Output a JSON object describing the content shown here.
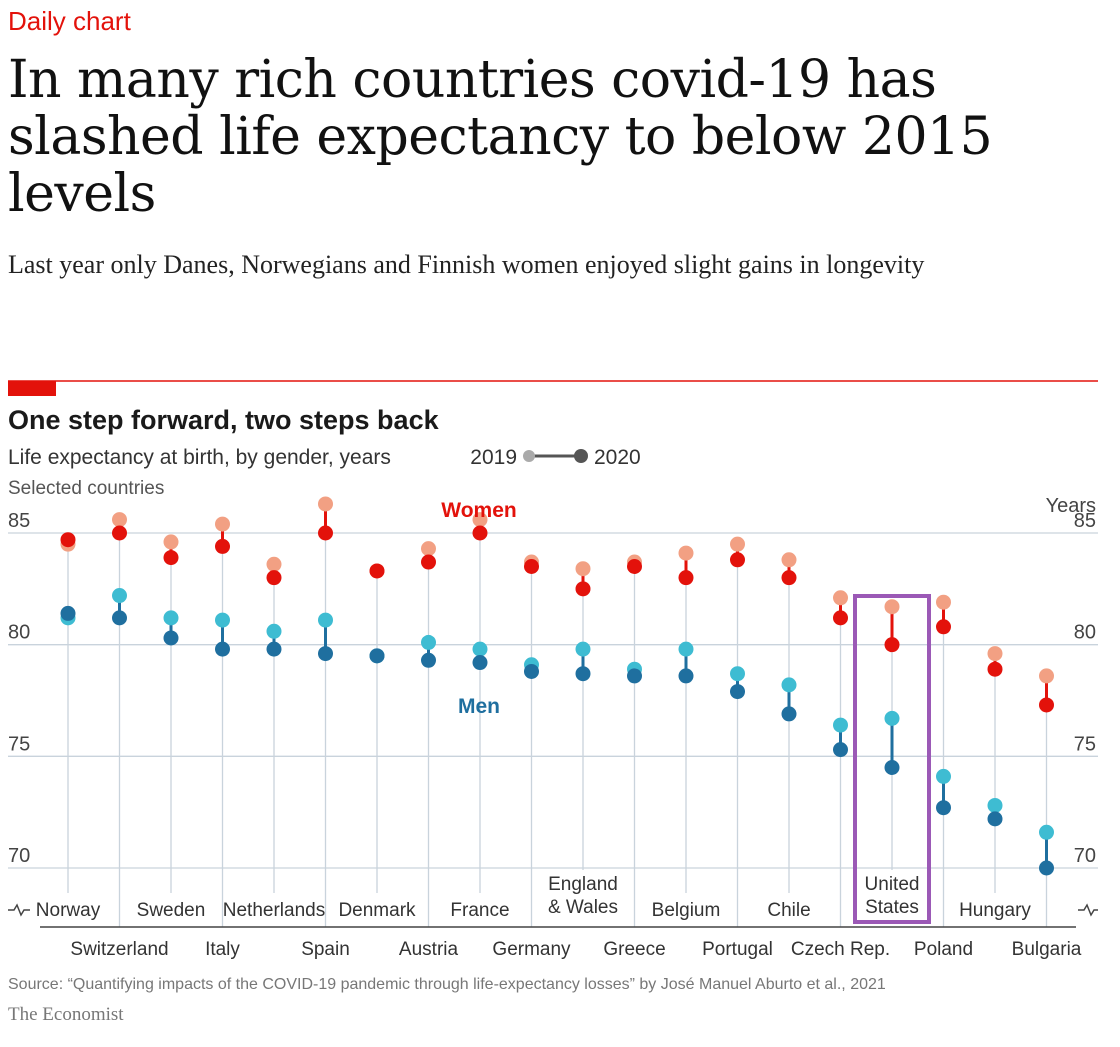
{
  "header": {
    "kicker": "Daily chart",
    "headline": "In many rich countries covid-19 has slashed life expectancy to below 2015 levels",
    "dek": "Last year only Danes, Norwegians and Finnish women enjoyed slight gains in longevity"
  },
  "chart_data": {
    "type": "dot-range",
    "title": "One step forward, two steps back",
    "subtitle": "Life expectancy at birth, by gender, years",
    "subtitle2": "Selected countries",
    "legend": {
      "from": "2019",
      "to": "2020"
    },
    "ylabel": "Years",
    "ylim": [
      70,
      85
    ],
    "yticks": [
      85,
      80,
      75,
      70
    ],
    "series_labels": {
      "women": "Women",
      "men": "Men"
    },
    "categories": [
      "Norway",
      "Switzerland",
      "Sweden",
      "Italy",
      "Netherlands",
      "Spain",
      "Denmark",
      "Austria",
      "France",
      "Germany",
      "England & Wales",
      "Greece",
      "Belgium",
      "Portugal",
      "Chile",
      "Czech Rep.",
      "United States",
      "Poland",
      "Hungary",
      "Bulgaria"
    ],
    "category_rows": [
      [
        "Norway"
      ],
      [
        "Switzerland"
      ],
      [
        "Sweden"
      ],
      [
        "Italy"
      ],
      [
        "Netherlands"
      ],
      [
        "Spain"
      ],
      [
        "Denmark"
      ],
      [
        "Austria"
      ],
      [
        "France"
      ],
      [
        "Germany"
      ],
      [
        "England",
        "& Wales"
      ],
      [
        "Greece"
      ],
      [
        "Belgium"
      ],
      [
        "Portugal"
      ],
      [
        "Chile"
      ],
      [
        "Czech Rep."
      ],
      [
        "United",
        "States"
      ],
      [
        "Poland"
      ],
      [
        "Hungary"
      ],
      [
        "Bulgaria"
      ]
    ],
    "women_2019": [
      84.5,
      85.6,
      84.6,
      85.4,
      83.6,
      86.3,
      83.3,
      84.3,
      85.6,
      83.7,
      83.4,
      83.7,
      84.1,
      84.5,
      83.8,
      82.1,
      81.7,
      81.9,
      79.6,
      78.6
    ],
    "women_2020": [
      84.7,
      85.0,
      83.9,
      84.4,
      83.0,
      85.0,
      83.3,
      83.7,
      85.0,
      83.5,
      82.5,
      83.5,
      83.0,
      83.8,
      83.0,
      81.2,
      80.0,
      80.8,
      78.9,
      77.3
    ],
    "men_2019": [
      81.2,
      82.2,
      81.2,
      81.1,
      80.6,
      81.1,
      79.5,
      80.1,
      79.8,
      79.1,
      79.8,
      78.9,
      79.8,
      78.7,
      78.2,
      76.4,
      76.7,
      74.1,
      72.8,
      71.6
    ],
    "men_2020": [
      81.4,
      81.2,
      80.3,
      79.8,
      79.8,
      79.6,
      79.5,
      79.3,
      79.2,
      78.8,
      78.7,
      78.6,
      78.6,
      77.9,
      76.9,
      75.3,
      74.5,
      72.7,
      72.2,
      70.0
    ],
    "highlight": "United States",
    "colors": {
      "women_2019": "#f2a083",
      "women_2020": "#e3120b",
      "men_2019": "#3ebcd2",
      "men_2020": "#1f6f9f",
      "highlight": "#9b59b6",
      "accent": "#e3120b"
    }
  },
  "footer": {
    "source": "Source: “Quantifying impacts of the COVID-19 pandemic through life-expectancy losses” by José Manuel Aburto et al., 2021",
    "brand": "The Economist"
  }
}
